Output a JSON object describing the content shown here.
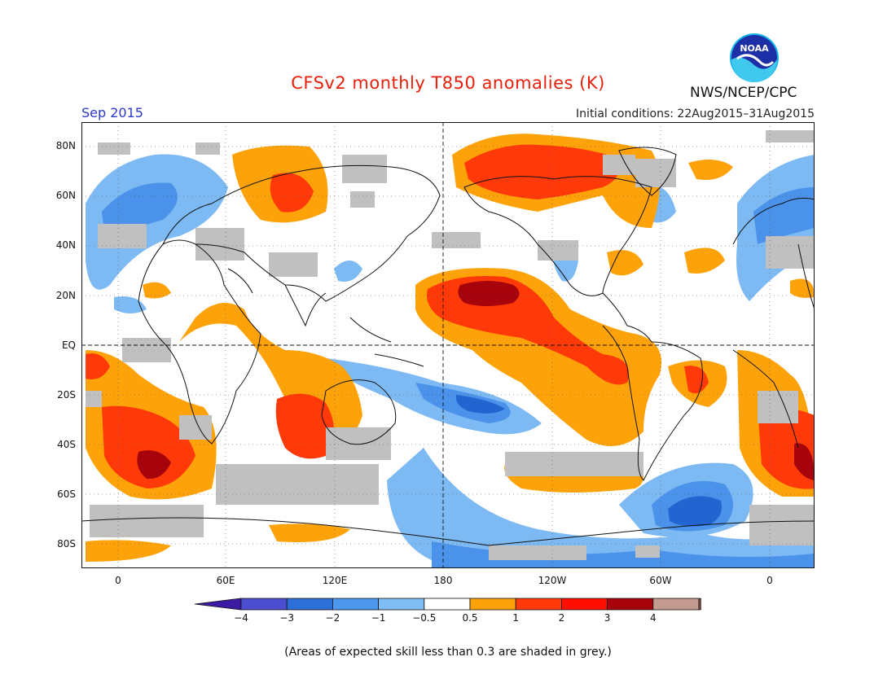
{
  "header": {
    "title": "CFSv2 monthly T850 anomalies (K)",
    "period": "Sep 2015",
    "initial_conditions": "Initial conditions: 22Aug2015–31Aug2015",
    "organization": "NWS/NCEP/CPC",
    "logo_text": "NOAA"
  },
  "map": {
    "lat_labels": [
      "80N",
      "60N",
      "40N",
      "20N",
      "EQ",
      "20S",
      "40S",
      "60S",
      "80S"
    ],
    "lon_labels": [
      "0",
      "60E",
      "120E",
      "180",
      "120W",
      "60W",
      "0"
    ],
    "colors": {
      "anom_neg_0_5_to_1": "#7db9f2",
      "anom_neg_1_to_2": "#4a92ea",
      "anom_neg_2_to_3": "#2265d1",
      "anom_pos_0_5_to_1": "#fea20a",
      "anom_pos_1_to_2": "#ff3a08",
      "anom_pos_2_to_3": "#a6030c",
      "low_skill_grey": "#c0c0c0"
    }
  },
  "colorbar": {
    "labels": [
      "−4",
      "−3",
      "−2",
      "−1",
      "−0.5",
      "0.5",
      "1",
      "2",
      "3",
      "4"
    ],
    "colors": [
      "#3c1aa4",
      "#4c4ed2",
      "#2d6fd9",
      "#4d97ef",
      "#7ebef4",
      "#ffffff",
      "#fea20a",
      "#ff3a08",
      "#ff0e02",
      "#a6030c",
      "#c29a8f",
      "#7a5248"
    ]
  },
  "footnote": "(Areas of expected skill less than 0.3 are shaded in grey.)"
}
